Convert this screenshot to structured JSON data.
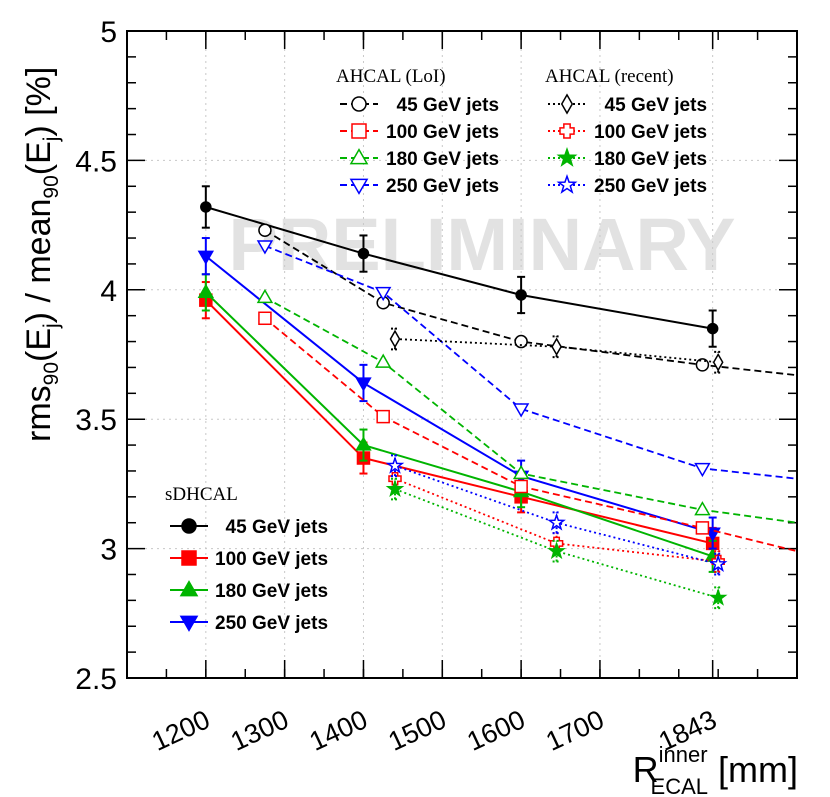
{
  "chart_data": {
    "type": "line",
    "watermark": "PRELIMINARY",
    "xlabel": {
      "main": "R",
      "sup": "inner",
      "sub": "ECAL",
      "unit": " [mm]"
    },
    "ylabel": {
      "p1": "rms",
      "s1": "90",
      "p2": "(E",
      "s2": "j",
      "p3": ") / mean",
      "s3": "90",
      "p4": "(E",
      "s4": "j",
      "p5": ") [%]"
    },
    "xlim": [
      1100,
      1950
    ],
    "ylim": [
      2.5,
      5.0
    ],
    "x_ticks": [
      1200,
      1300,
      1400,
      1500,
      1600,
      1700,
      1843
    ],
    "x_tick_labels": [
      "1200",
      "1300",
      "1400",
      "1500",
      "1600",
      "1700",
      "1843"
    ],
    "y_ticks": [
      2.5,
      3.0,
      3.5,
      4.0,
      4.5,
      5.0
    ],
    "y_tick_labels": [
      "2.5",
      "3",
      "3.5",
      "4",
      "4.5",
      "5"
    ],
    "legend_headers": {
      "loi": "AHCAL (LoI)",
      "recent": "AHCAL (recent)",
      "sdhcal": "sDHCAL"
    },
    "series": [
      {
        "group": "sdhcal",
        "name": "45 GeV jets",
        "color": "#000000",
        "marker": "circle",
        "filled": true,
        "line": "solid",
        "x": [
          1200,
          1400,
          1600,
          1843
        ],
        "y": [
          4.32,
          4.14,
          3.98,
          3.85
        ],
        "err": [
          0.08,
          0.07,
          0.07,
          0.07
        ]
      },
      {
        "group": "sdhcal",
        "name": "100 GeV jets",
        "color": "#ff0000",
        "marker": "square",
        "filled": true,
        "line": "solid",
        "x": [
          1200,
          1400,
          1600,
          1843
        ],
        "y": [
          3.96,
          3.35,
          3.2,
          3.02
        ],
        "err": [
          0.07,
          0.06,
          0.06,
          0.06
        ]
      },
      {
        "group": "sdhcal",
        "name": "180 GeV jets",
        "color": "#00b400",
        "marker": "triangle-up",
        "filled": true,
        "line": "solid",
        "x": [
          1200,
          1400,
          1600,
          1843
        ],
        "y": [
          3.99,
          3.4,
          3.22,
          2.97
        ],
        "err": [
          0.07,
          0.06,
          0.06,
          0.06
        ]
      },
      {
        "group": "sdhcal",
        "name": "250 GeV jets",
        "color": "#0000ff",
        "marker": "triangle-down",
        "filled": true,
        "line": "solid",
        "x": [
          1200,
          1400,
          1600,
          1843
        ],
        "y": [
          4.13,
          3.64,
          3.28,
          3.06
        ],
        "err": [
          0.07,
          0.07,
          0.06,
          0.06
        ]
      },
      {
        "group": "loi",
        "name": "45 GeV jets",
        "color": "#000000",
        "marker": "circle",
        "filled": false,
        "line": "dashed",
        "x": [
          1275,
          1425,
          1600,
          1830,
          1950
        ],
        "y": [
          4.23,
          3.95,
          3.8,
          3.71,
          3.67
        ]
      },
      {
        "group": "loi",
        "name": "100 GeV jets",
        "color": "#ff0000",
        "marker": "square",
        "filled": false,
        "line": "dashed",
        "x": [
          1275,
          1425,
          1600,
          1830,
          1950
        ],
        "y": [
          3.89,
          3.51,
          3.24,
          3.08,
          2.99
        ]
      },
      {
        "group": "loi",
        "name": "180 GeV jets",
        "color": "#00b400",
        "marker": "triangle-up",
        "filled": false,
        "line": "dashed",
        "x": [
          1275,
          1425,
          1600,
          1830,
          1950
        ],
        "y": [
          3.97,
          3.72,
          3.29,
          3.15,
          3.1
        ]
      },
      {
        "group": "loi",
        "name": "250 GeV jets",
        "color": "#0000ff",
        "marker": "triangle-down",
        "filled": false,
        "line": "dashed",
        "x": [
          1275,
          1425,
          1600,
          1830,
          1950
        ],
        "y": [
          4.17,
          3.99,
          3.54,
          3.31,
          3.27
        ]
      },
      {
        "group": "recent",
        "name": "45 GeV jets",
        "color": "#000000",
        "marker": "diamond",
        "filled": false,
        "line": "dotted",
        "x": [
          1440,
          1645,
          1850
        ],
        "y": [
          3.81,
          3.78,
          3.72
        ],
        "err": [
          0.04,
          0.04,
          0.04
        ]
      },
      {
        "group": "recent",
        "name": "100 GeV jets",
        "color": "#ff0000",
        "marker": "cross",
        "filled": false,
        "line": "dotted",
        "x": [
          1440,
          1645,
          1850
        ],
        "y": [
          3.27,
          3.02,
          2.95
        ],
        "err": [
          0.04,
          0.04,
          0.04
        ]
      },
      {
        "group": "recent",
        "name": "180 GeV jets",
        "color": "#00b400",
        "marker": "star",
        "filled": true,
        "line": "dotted",
        "x": [
          1440,
          1645,
          1850
        ],
        "y": [
          3.23,
          2.99,
          2.81
        ],
        "err": [
          0.04,
          0.04,
          0.04
        ]
      },
      {
        "group": "recent",
        "name": "250 GeV jets",
        "color": "#0000ff",
        "marker": "star",
        "filled": false,
        "line": "dotted",
        "x": [
          1440,
          1645,
          1850
        ],
        "y": [
          3.32,
          3.1,
          2.94
        ],
        "err": [
          0.04,
          0.04,
          0.04
        ]
      }
    ]
  }
}
